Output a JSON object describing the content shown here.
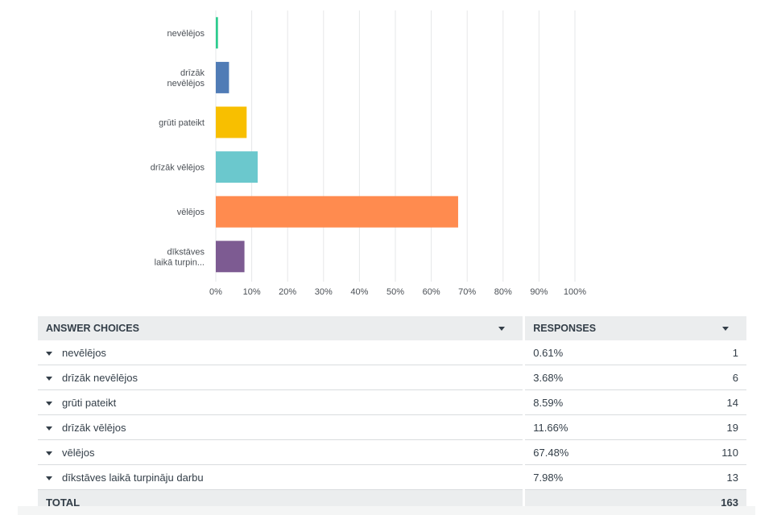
{
  "chart_data": {
    "type": "bar",
    "orientation": "horizontal",
    "categories": [
      "nevēlējos",
      "drīzāk nevēlējos",
      "grūti pateikt",
      "drīzāk vēlējos",
      "vēlējos",
      "dīkstāves laikā turpin..."
    ],
    "category_label_lines": [
      [
        "nevēlējos"
      ],
      [
        "drīzāk",
        "nevēlējos"
      ],
      [
        "grūti pateikt"
      ],
      [
        "drīzāk vēlējos"
      ],
      [
        "vēlējos"
      ],
      [
        "dīkstāves",
        "laikā turpin..."
      ]
    ],
    "values": [
      0.61,
      3.68,
      8.59,
      11.66,
      67.48,
      7.98
    ],
    "colors": [
      "#2dcc8f",
      "#507cb6",
      "#f8bf00",
      "#6bc8cd",
      "#ff8b4f",
      "#7d5b92"
    ],
    "xlim": [
      0,
      100
    ],
    "x_ticks": [
      "0%",
      "10%",
      "20%",
      "30%",
      "40%",
      "50%",
      "60%",
      "70%",
      "80%",
      "90%",
      "100%"
    ],
    "grid": true
  },
  "table": {
    "header_choice": "ANSWER CHOICES",
    "header_responses": "RESPONSES",
    "rows": [
      {
        "label": "nevēlējos",
        "percent": "0.61%",
        "count": "1"
      },
      {
        "label": "drīzāk nevēlējos",
        "percent": "3.68%",
        "count": "6"
      },
      {
        "label": "grūti pateikt",
        "percent": "8.59%",
        "count": "14"
      },
      {
        "label": "drīzāk vēlējos",
        "percent": "11.66%",
        "count": "19"
      },
      {
        "label": "vēlējos",
        "percent": "67.48%",
        "count": "110"
      },
      {
        "label": "dīkstāves laikā turpināju darbu",
        "percent": "7.98%",
        "count": "13"
      }
    ],
    "total_label": "TOTAL",
    "total_count": "163"
  }
}
